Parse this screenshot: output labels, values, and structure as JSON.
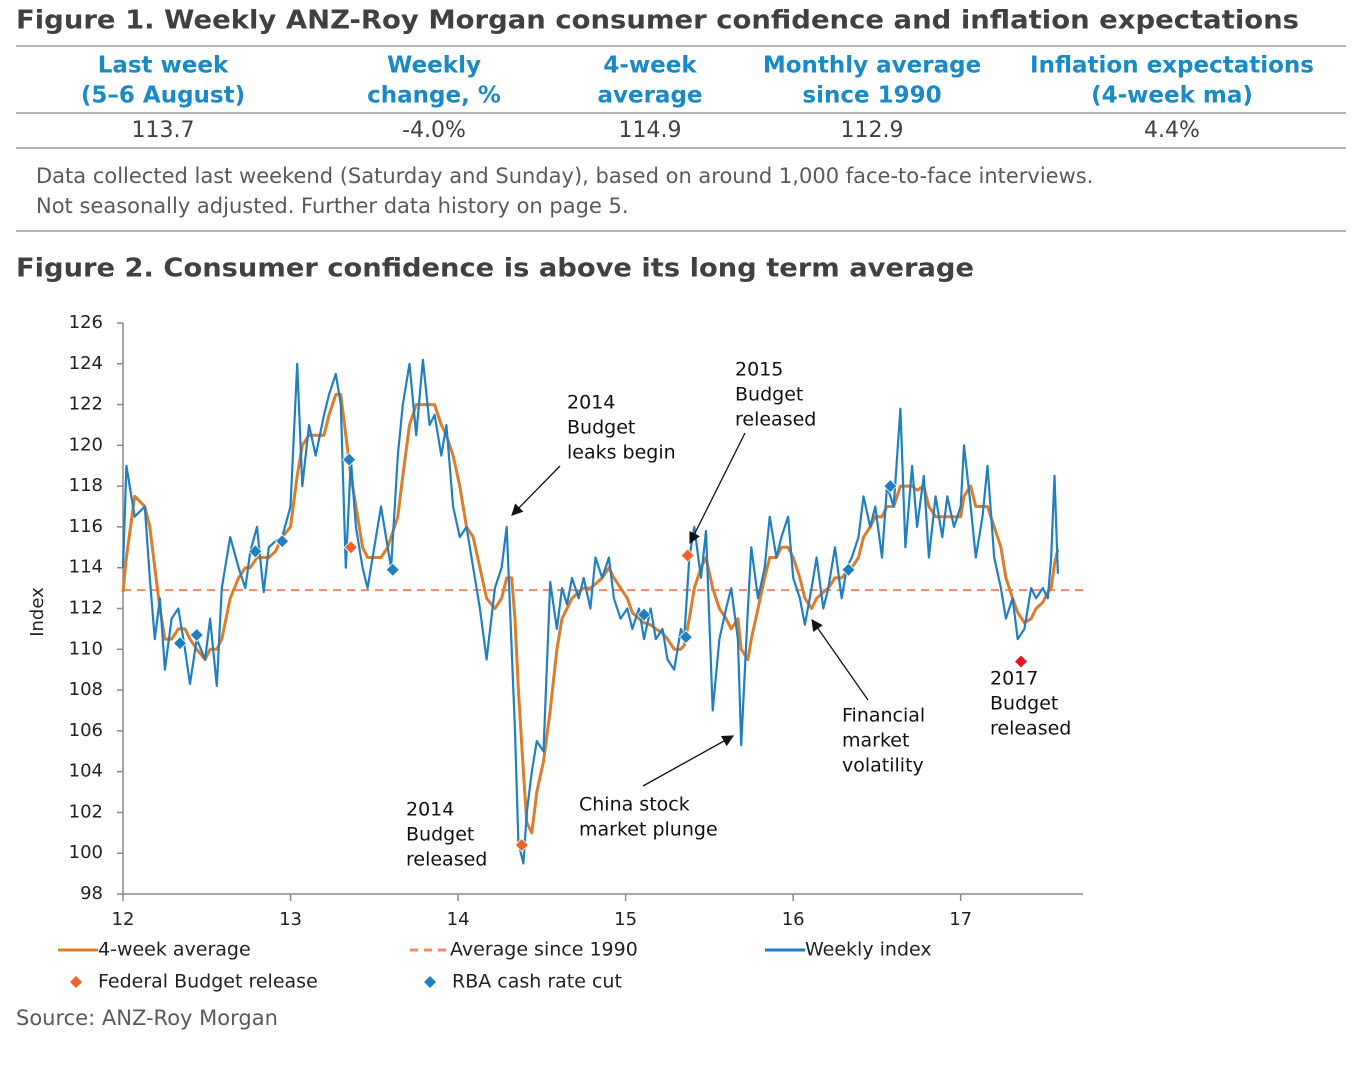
{
  "figure1": {
    "title": "Figure 1. Weekly ANZ-Roy Morgan consumer confidence and inflation expectations",
    "table": {
      "header": [
        [
          "Last week",
          "(5–6 August)"
        ],
        [
          "Weekly",
          "change, %"
        ],
        [
          "4-week",
          "average"
        ],
        [
          "Monthly average",
          "since 1990"
        ],
        [
          "Inflation expectations",
          "(4-week ma)"
        ]
      ],
      "rows": [
        [
          "113.7",
          "-4.0%",
          "114.9",
          "112.9",
          "4.4%"
        ]
      ]
    },
    "note": [
      "Data collected last weekend (Saturday and Sunday), based on around 1,000 face-to-face interviews.",
      "Not seasonally adjusted. Further data history on page 5."
    ]
  },
  "chart_data": {
    "type": "line",
    "title": "Figure 2. Consumer confidence is above its long term average",
    "y_label": "Index",
    "xlim": [
      12,
      17.73
    ],
    "xticks": [
      12,
      13,
      14,
      15,
      16,
      17
    ],
    "ylim": [
      98,
      126
    ],
    "yticks": [
      98,
      100,
      102,
      104,
      106,
      108,
      110,
      112,
      114,
      116,
      118,
      120,
      122,
      124,
      126
    ],
    "x": [
      12.0,
      12.02,
      12.07,
      12.13,
      12.16,
      12.19,
      12.22,
      12.25,
      12.29,
      12.33,
      12.37,
      12.4,
      12.44,
      12.49,
      12.52,
      12.56,
      12.59,
      12.64,
      12.69,
      12.73,
      12.76,
      12.8,
      12.84,
      12.87,
      12.91,
      12.95,
      13.0,
      13.04,
      13.07,
      13.11,
      13.15,
      13.2,
      13.23,
      13.27,
      13.3,
      13.33,
      13.36,
      13.39,
      13.43,
      13.46,
      13.5,
      13.54,
      13.58,
      13.6,
      13.64,
      13.67,
      13.71,
      13.75,
      13.79,
      13.83,
      13.86,
      13.9,
      13.93,
      13.97,
      14.01,
      14.05,
      14.09,
      14.13,
      14.17,
      14.22,
      14.26,
      14.29,
      14.32,
      14.34,
      14.36,
      14.39,
      14.41,
      14.44,
      14.47,
      14.51,
      14.55,
      14.59,
      14.62,
      14.65,
      14.68,
      14.72,
      14.75,
      14.79,
      14.82,
      14.86,
      14.9,
      14.93,
      14.97,
      15.01,
      15.04,
      15.08,
      15.11,
      15.15,
      15.18,
      15.22,
      15.25,
      15.29,
      15.33,
      15.35,
      15.38,
      15.41,
      15.45,
      15.48,
      15.52,
      15.56,
      15.6,
      15.63,
      15.67,
      15.69,
      15.73,
      15.75,
      15.79,
      15.83,
      15.86,
      15.9,
      15.93,
      15.97,
      16.0,
      16.04,
      16.07,
      16.11,
      16.14,
      16.18,
      16.21,
      16.25,
      16.29,
      16.32,
      16.35,
      16.39,
      16.42,
      16.46,
      16.49,
      16.53,
      16.56,
      16.6,
      16.64,
      16.67,
      16.71,
      16.74,
      16.78,
      16.81,
      16.85,
      16.89,
      16.92,
      16.96,
      17.0,
      17.02,
      17.06,
      17.09,
      17.13,
      17.16,
      17.2,
      17.24,
      17.27,
      17.31,
      17.34,
      17.38,
      17.42,
      17.45,
      17.49,
      17.52,
      17.54,
      17.56,
      17.58
    ],
    "series": [
      {
        "name": "4-week average",
        "color": "#dd7c2b",
        "values": [
          112.8,
          114.5,
          117.5,
          117,
          116,
          114,
          112,
          110.5,
          110.5,
          111,
          111,
          110.5,
          110,
          109.5,
          110,
          110,
          110.5,
          112.5,
          113.5,
          114,
          114,
          114.5,
          114.5,
          114.5,
          114.8,
          115.5,
          116,
          118.5,
          120,
          120.5,
          120.5,
          120.5,
          121.5,
          122.5,
          122.5,
          120.5,
          118.5,
          117,
          115,
          114.5,
          114.5,
          114.5,
          115,
          115.5,
          116.5,
          118.5,
          121,
          122,
          122,
          122,
          122,
          121,
          120.5,
          119.5,
          118,
          116,
          115.5,
          114,
          112.5,
          112,
          112.5,
          113.5,
          113.5,
          111.5,
          108,
          104,
          101.5,
          101,
          103,
          104.5,
          107,
          110,
          111.5,
          112,
          112.5,
          112.8,
          113,
          113,
          113.2,
          113.5,
          114,
          113.5,
          113,
          112.5,
          111.8,
          111.5,
          111.3,
          111.2,
          111,
          110.8,
          110.5,
          110,
          110,
          110.2,
          111.5,
          113,
          114,
          114.5,
          113,
          112,
          111.5,
          111,
          111.5,
          110,
          109.5,
          110.5,
          112,
          113.5,
          114.5,
          114.5,
          115,
          115,
          114.5,
          113.5,
          112.5,
          112,
          112.5,
          112.8,
          113,
          113.5,
          113.5,
          113.8,
          114,
          114.5,
          115.5,
          116,
          116.5,
          116.5,
          117,
          117,
          118,
          118,
          118,
          117.8,
          118,
          117,
          116.5,
          116.5,
          116.5,
          116.5,
          116.5,
          117.5,
          118,
          117,
          117,
          117,
          116,
          115,
          113.5,
          112.5,
          111.8,
          111.3,
          111.5,
          112,
          112.3,
          112.8,
          113,
          114.2,
          114.9
        ]
      },
      {
        "name": "Weekly index",
        "color": "#1f7fc1",
        "values": [
          114,
          119,
          116.5,
          117,
          113.5,
          110.5,
          112.5,
          109,
          111.5,
          112,
          110,
          108.3,
          110.5,
          109.5,
          111.5,
          108.2,
          113,
          115.5,
          114,
          113,
          114.8,
          116,
          112.8,
          115,
          115.3,
          115.5,
          117,
          124,
          118,
          121,
          119.5,
          121.5,
          122.5,
          123.5,
          122,
          114,
          119.3,
          116,
          114,
          113,
          115,
          117,
          115,
          114,
          119.5,
          122,
          124,
          120.5,
          124.2,
          121,
          121.5,
          119.5,
          121,
          117,
          115.5,
          116,
          114,
          112,
          109.5,
          113,
          114,
          116,
          110,
          106,
          100.5,
          99.5,
          102,
          104,
          105.5,
          105,
          113.3,
          111,
          113,
          112.2,
          113.5,
          112.5,
          113.5,
          112,
          114.5,
          113.5,
          114.5,
          112.5,
          111.5,
          112,
          111,
          112,
          110.5,
          112,
          110.5,
          111,
          109.5,
          109,
          111,
          110.6,
          114.5,
          116,
          113.5,
          115.8,
          107,
          110.5,
          112,
          113,
          110.5,
          105.3,
          112,
          115,
          112.5,
          114,
          116.5,
          114.5,
          115.5,
          116.5,
          113.5,
          112.5,
          111.2,
          113,
          114.5,
          112,
          113,
          115,
          112.5,
          114,
          114.5,
          115.5,
          117.5,
          116,
          117,
          114.5,
          118,
          117,
          121.8,
          115,
          119,
          116,
          118.5,
          114.5,
          117.5,
          115.5,
          117.5,
          116,
          117,
          120,
          117,
          114.5,
          116.5,
          119,
          114.5,
          113,
          111.5,
          112.5,
          110.5,
          111,
          113,
          112.5,
          113,
          112.5,
          114.5,
          118.5,
          113.7
        ]
      }
    ],
    "reference_line": {
      "name": "Average since 1990",
      "color": "#f08a6a",
      "value": 112.9
    },
    "markers": [
      {
        "name": "Federal Budget release",
        "color": "#f4602a",
        "colors": [
          "#f4602a",
          "#f4602a",
          "#f4602a",
          "#e8141e"
        ],
        "x": [
          13.36,
          14.38,
          15.37,
          17.36
        ],
        "values": [
          115,
          100.4,
          114.6,
          109.4
        ]
      },
      {
        "name": "RBA cash rate cut",
        "color": "#1f7fc1",
        "x": [
          12.34,
          12.44,
          12.79,
          12.95,
          13.35,
          13.61,
          15.11,
          15.36,
          16.33,
          16.58
        ],
        "values": [
          110.3,
          110.7,
          114.8,
          115.3,
          119.3,
          113.9,
          111.7,
          110.6,
          113.9,
          118
        ]
      }
    ],
    "annotations": [
      [
        "2014",
        "Budget",
        "leaks begin"
      ],
      [
        "2015",
        "Budget",
        "released"
      ],
      [
        "2014",
        "Budget",
        "released"
      ],
      [
        "China stock",
        "market plunge"
      ],
      [
        "Financial",
        "market",
        "volatility"
      ],
      [
        "2017",
        "Budget",
        "released"
      ]
    ],
    "source": "Source: ANZ-Roy Morgan"
  }
}
